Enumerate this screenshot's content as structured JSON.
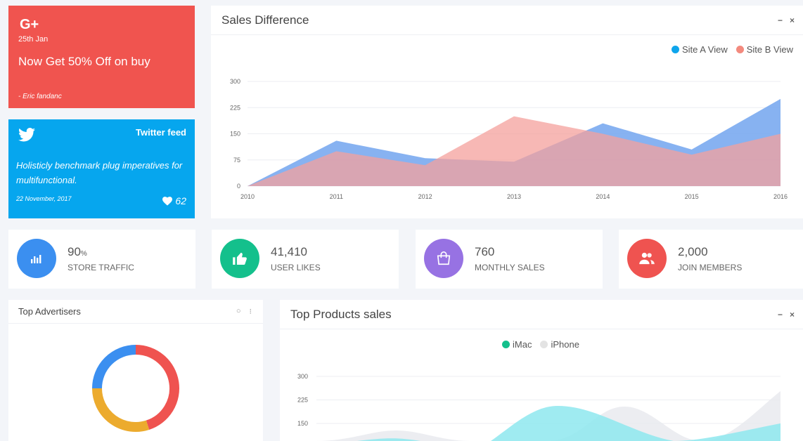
{
  "google_card": {
    "icon": "G+",
    "date": "25th Jan",
    "title": "Now Get 50% Off on buy",
    "author": "- Eric fandanc"
  },
  "twitter_card": {
    "label": "Twitter feed",
    "text": "Holisticly benchmark plug imperatives for multifunctional.",
    "date": "22 November, 2017",
    "likes": "62"
  },
  "sales_chart": {
    "title": "Sales Difference",
    "minimize": "−",
    "close": "×",
    "chart_data": {
      "type": "area",
      "x": [
        "2010",
        "2011",
        "2012",
        "2013",
        "2014",
        "2015",
        "2016"
      ],
      "yticks": [
        "0",
        "75",
        "150",
        "225",
        "300"
      ],
      "ylim": [
        0,
        300
      ],
      "series": [
        {
          "name": "Site A View",
          "color": "#7aaaf0",
          "values": [
            0,
            130,
            80,
            70,
            180,
            105,
            250
          ]
        },
        {
          "name": "Site B View",
          "color": "#f4a09c",
          "values": [
            0,
            100,
            60,
            200,
            150,
            90,
            150
          ]
        }
      ],
      "legend_dots": [
        "#0ea5ec",
        "#f38a7e"
      ]
    }
  },
  "stats": [
    {
      "value": "90",
      "suffix": "%",
      "label": "STORE TRAFFIC",
      "color": "#3b8ff0",
      "icon": "bar-chart-icon"
    },
    {
      "value": "41,410",
      "suffix": "",
      "label": "USER LIKES",
      "color": "#14c08c",
      "icon": "thumbs-up-icon"
    },
    {
      "value": "760",
      "suffix": "",
      "label": "MONTHLY SALES",
      "color": "#9772e3",
      "icon": "shopping-bag-icon"
    },
    {
      "value": "2,000",
      "suffix": "",
      "label": "JOIN MEMBERS",
      "color": "#ef5350",
      "icon": "users-icon"
    }
  ],
  "advertisers": {
    "title": "Top Advertisers",
    "refresh": "○",
    "more": "⁝",
    "chart_data": {
      "type": "pie",
      "values": [
        45,
        30,
        25
      ],
      "colors": [
        "#ef5350",
        "#ecab2e",
        "#3b8ff0"
      ]
    }
  },
  "products_chart": {
    "title": "Top Products sales",
    "minimize": "−",
    "close": "×",
    "chart_data": {
      "type": "area",
      "yticks": [
        "150",
        "225",
        "300"
      ],
      "ylim": [
        0,
        300
      ],
      "series": [
        {
          "name": "iMac",
          "color": "#14c08c"
        },
        {
          "name": "iPhone",
          "color": "#e3e3e3"
        }
      ]
    }
  }
}
